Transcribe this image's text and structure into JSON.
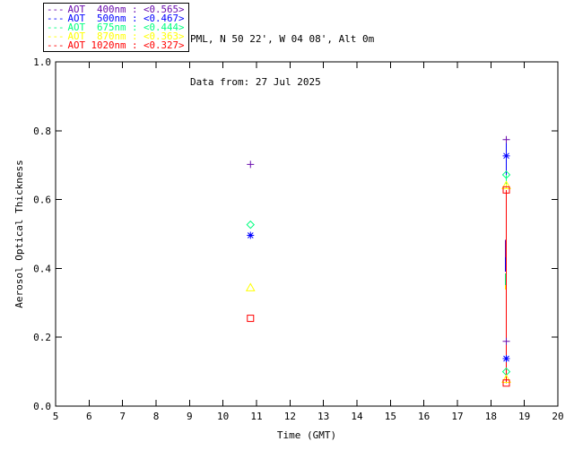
{
  "page": {
    "background": "#FFFFFF",
    "axis_color": "#000000"
  },
  "header": {
    "line1": "PML, N 50 22', W 04 08', Alt 0m",
    "line2": "Data from: 27 Jul 2025"
  },
  "legend": {
    "line_sample": "---",
    "items": [
      {
        "label": "AOT  400nm : <0.565>",
        "color": "#6A0DAD"
      },
      {
        "label": "AOT  500nm : <0.467>",
        "color": "#0000FF"
      },
      {
        "label": "AOT  675nm : <0.444>",
        "color": "#00FF7F"
      },
      {
        "label": "AOT  870nm : <0.363>",
        "color": "#FFFF00"
      },
      {
        "label": "AOT 1020nm : <0.327>",
        "color": "#FF0000"
      }
    ]
  },
  "chart_data": {
    "type": "scatter",
    "title": "",
    "xlabel": "Time (GMT)",
    "ylabel": "Aerosol Optical Thickness",
    "xlim": [
      5,
      20
    ],
    "ylim": [
      0.0,
      1.0
    ],
    "xticks": [
      5,
      6,
      7,
      8,
      9,
      10,
      11,
      12,
      13,
      14,
      15,
      16,
      17,
      18,
      19,
      20
    ],
    "yticks": [
      0.0,
      0.2,
      0.4,
      0.6,
      0.8,
      1.0
    ],
    "ytick_labels": [
      "0.0",
      "0.2",
      "0.4",
      "0.6",
      "0.8",
      "1.0"
    ],
    "grid": false,
    "legend_position": "top-left-outside",
    "series": [
      {
        "name": "AOT 400nm",
        "slug": "aot-400nm",
        "wavelength_nm": 400,
        "mean_label": "<0.565>",
        "color": "#6A0DAD",
        "marker": "plus",
        "points": [
          [
            10.82,
            0.702
          ],
          [
            18.46,
            0.774
          ],
          [
            18.46,
            0.188
          ]
        ]
      },
      {
        "name": "AOT 500nm",
        "slug": "aot-500nm",
        "wavelength_nm": 500,
        "mean_label": "<0.467>",
        "color": "#0000FF",
        "marker": "asterisk",
        "points": [
          [
            10.82,
            0.496
          ],
          [
            18.46,
            0.727
          ],
          [
            18.46,
            0.138
          ]
        ]
      },
      {
        "name": "AOT 675nm",
        "slug": "aot-675nm",
        "wavelength_nm": 675,
        "mean_label": "<0.444>",
        "color": "#00FF7F",
        "marker": "diamond",
        "points": [
          [
            10.82,
            0.527
          ],
          [
            18.46,
            0.672
          ],
          [
            18.46,
            0.1
          ]
        ]
      },
      {
        "name": "AOT 870nm",
        "slug": "aot-870nm",
        "wavelength_nm": 870,
        "mean_label": "<0.363>",
        "color": "#FFFF00",
        "marker": "triangle",
        "points": [
          [
            10.82,
            0.344
          ],
          [
            18.46,
            0.641
          ],
          [
            18.46,
            0.078
          ]
        ]
      },
      {
        "name": "AOT 1020nm",
        "slug": "aot-1020nm",
        "wavelength_nm": 1020,
        "mean_label": "<0.327>",
        "color": "#FF0000",
        "marker": "square",
        "points": [
          [
            10.82,
            0.255
          ],
          [
            18.46,
            0.628
          ],
          [
            18.46,
            0.067
          ]
        ]
      }
    ],
    "line_segments": [
      {
        "color": "#0000FF",
        "x": 18.46,
        "y1": 0.774,
        "y2": 0.672
      },
      {
        "color": "#00FF7F",
        "x": 18.46,
        "y1": 0.672,
        "y2": 0.646
      },
      {
        "color": "#FFFF00",
        "x": 18.46,
        "y1": 0.646,
        "y2": 0.633
      },
      {
        "color": "#6A0DAD",
        "x": 18.43,
        "y1": 0.483,
        "y2": 0.432
      },
      {
        "color": "#0000FF",
        "x": 18.43,
        "y1": 0.432,
        "y2": 0.39
      },
      {
        "color": "#00FF7F",
        "x": 18.43,
        "y1": 0.385,
        "y2": 0.352
      },
      {
        "color": "#FFFF00",
        "x": 18.43,
        "y1": 0.352,
        "y2": 0.339
      },
      {
        "color": "#FF0000",
        "x": 18.46,
        "y1": 0.628,
        "y2": 0.067
      }
    ]
  }
}
